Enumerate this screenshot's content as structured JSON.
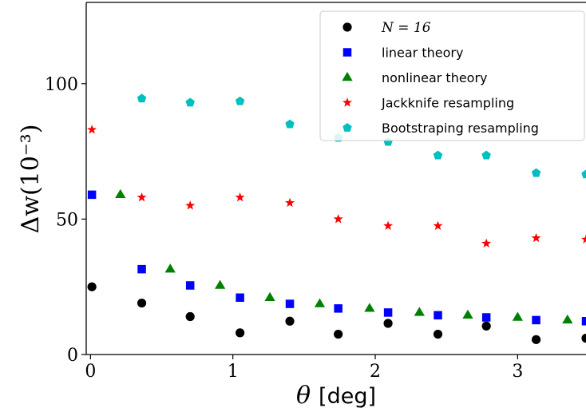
{
  "chart_data": {
    "type": "scatter",
    "xlabel_symbol": "θ",
    "xlabel_unit": "[deg]",
    "ylabel": "Δw(10⁻³)",
    "xlim": [
      -0.03,
      3.48
    ],
    "ylim": [
      0,
      130
    ],
    "xticks": [
      0,
      1,
      2,
      3
    ],
    "yticks": [
      0,
      50,
      100
    ],
    "legend_position": "top-right",
    "series": [
      {
        "name": "N = 16",
        "marker": "circle",
        "color": "#000000",
        "x": [
          0.01,
          0.36,
          0.7,
          1.05,
          1.4,
          1.74,
          2.09,
          2.44,
          2.78,
          3.13,
          3.48
        ],
        "y": [
          25.0,
          19.0,
          14.0,
          8.0,
          12.3,
          7.5,
          11.5,
          7.5,
          10.5,
          5.5,
          6.0
        ]
      },
      {
        "name": "linear theory",
        "marker": "square",
        "color": "#0000ff",
        "x": [
          0.01,
          0.36,
          0.7,
          1.05,
          1.4,
          1.74,
          2.09,
          2.44,
          2.78,
          3.13,
          3.48
        ],
        "y": [
          59.0,
          31.5,
          25.5,
          21.0,
          18.7,
          17.0,
          15.5,
          14.5,
          13.7,
          12.7,
          12.3
        ]
      },
      {
        "name": "nonlinear theory",
        "marker": "triangle",
        "color": "#008000",
        "x": [
          0.21,
          0.56,
          0.91,
          1.26,
          1.61,
          1.96,
          2.31,
          2.65,
          3.0,
          3.35
        ],
        "y": [
          59.0,
          31.5,
          25.5,
          21.0,
          18.7,
          17.0,
          15.5,
          14.5,
          13.7,
          12.7
        ]
      },
      {
        "name": "Jackknife resampling",
        "marker": "star",
        "color": "#ff0000",
        "x": [
          0.01,
          0.36,
          0.7,
          1.05,
          1.4,
          1.74,
          2.09,
          2.44,
          2.78,
          3.13,
          3.48
        ],
        "y": [
          83.0,
          58.0,
          55.0,
          58.0,
          56.0,
          50.0,
          47.5,
          47.5,
          41.0,
          43.0,
          42.5
        ]
      },
      {
        "name": "Bootstraping resampling",
        "marker": "pentagon",
        "color": "#00bfbf",
        "x": [
          0.36,
          0.7,
          1.05,
          1.4,
          1.74,
          2.09,
          2.44,
          2.78,
          3.13,
          3.48
        ],
        "y": [
          94.5,
          93.0,
          93.5,
          85.0,
          80.0,
          78.5,
          73.5,
          73.5,
          67.0,
          66.5
        ]
      }
    ]
  }
}
